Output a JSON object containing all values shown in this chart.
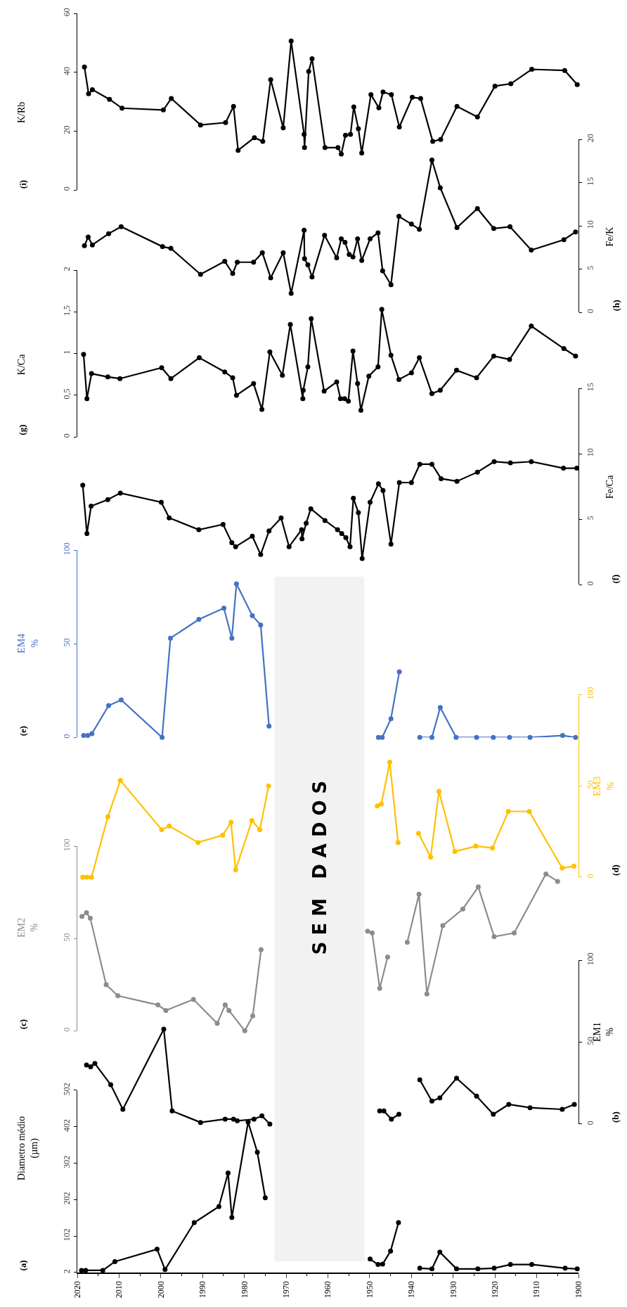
{
  "chart_data": [
    {
      "type": "line",
      "marker": "circle",
      "line_style": "solid",
      "ylabel": "Diametro médio\n(µm)",
      "annotations": [
        "(a)"
      ],
      "color": "#000000",
      "xlim": [
        2020,
        1900
      ],
      "xticks": [
        2020,
        2010,
        2000,
        1990,
        1980,
        1970,
        1960,
        1950,
        1940,
        1930,
        1920,
        1910,
        1900
      ],
      "ylim": [
        2,
        502
      ],
      "yticks": [
        2,
        102,
        202,
        302,
        402,
        502
      ],
      "bands": [
        {
          "axis": "x",
          "from": 1972.8,
          "to": 1951.3,
          "label": "SEM DADOS",
          "color": "#f2f2f2"
        }
      ],
      "x": [
        2019.0,
        2018.0,
        2013.9,
        2011.0,
        2000.9,
        1999.0,
        1992.0,
        1986.1,
        1983.9,
        1983.0,
        1979.1,
        1976.9,
        1975.0,
        1963,
        1949.9,
        1948.0,
        1946.9,
        1945.0,
        1943.1,
        1940.5,
        1938.0,
        1935.1,
        1933.2,
        1929.2,
        1924.1,
        1920.2,
        1916.3,
        1911.2,
        1903.2,
        1900.3
      ],
      "values": [
        8,
        8,
        8,
        32,
        66,
        10,
        139,
        183,
        275,
        153,
        415,
        332,
        207,
        null,
        39,
        24,
        25,
        61,
        139,
        null,
        14,
        12,
        58,
        12,
        12,
        14,
        24,
        24,
        14,
        12
      ]
    },
    {
      "type": "line",
      "marker": "circle",
      "line_style": "solid",
      "ylabel": "EM1\n%",
      "annotations": [
        "(b)"
      ],
      "color": "#000000",
      "tick_labels": "y",
      "xlim": [
        2020,
        1900
      ],
      "xticks": [
        2020,
        2010,
        2000,
        1990,
        1980,
        1970,
        1960,
        1950,
        1940,
        1930,
        1920,
        1910,
        1900
      ],
      "ylim": [
        0,
        100
      ],
      "yticks": [
        0,
        50,
        100
      ],
      "x": [
        2017.8,
        2016.8,
        2015.8,
        2012.0,
        2009.1,
        1999.3,
        1997.3,
        1990.5,
        1984.6,
        1982.6,
        1981.7,
        1977.7,
        1975.8,
        1973.9,
        1963,
        1947.6,
        1946.6,
        1944.8,
        1943.0,
        1940.5,
        1938.0,
        1935.1,
        1933.2,
        1929.2,
        1924.4,
        1920.4,
        1916.7,
        1911.6,
        1903.9,
        1901.0
      ],
      "values": [
        36,
        35,
        37,
        24,
        9,
        58,
        8,
        1,
        3,
        3,
        2,
        3,
        5,
        0,
        null,
        8,
        8,
        3,
        6,
        null,
        27,
        14,
        16,
        28,
        17,
        6,
        12,
        10,
        9,
        12
      ]
    },
    {
      "type": "line",
      "marker": "circle",
      "line_style": "solid",
      "ylabel": "EM2\n%",
      "annotations": [
        "(c)"
      ],
      "color": "#8c8c8c",
      "tick_labels": "y",
      "xlim": [
        2020,
        1900
      ],
      "xticks": [
        2020,
        2010,
        2000,
        1990,
        1980,
        1970,
        1960,
        1950,
        1940,
        1930,
        1920,
        1910,
        1900
      ],
      "ylim": [
        0,
        100
      ],
      "yticks": [
        0,
        50,
        100
      ],
      "x": [
        2018.9,
        2017.8,
        2016.9,
        2013.1,
        2010.3,
        2000.7,
        1998.8,
        1992.2,
        1986.5,
        1984.6,
        1983.7,
        1979.9,
        1978.0,
        1976.0,
        1963,
        1950.5,
        1949.4,
        1947.6,
        1945.7,
        1943.5,
        1941.0,
        1938.2,
        1936.3,
        1932.5,
        1927.7,
        1924.0,
        1920.2,
        1915.4,
        1907.8,
        1905.0
      ],
      "values": [
        62,
        64,
        61,
        25,
        19,
        14,
        11,
        17,
        4,
        14,
        11,
        0,
        8,
        44,
        null,
        54,
        53,
        23,
        40,
        null,
        48,
        74,
        20,
        57,
        66,
        78,
        51,
        53,
        85,
        81
      ]
    },
    {
      "type": "line",
      "marker": "circle",
      "line_style": "solid",
      "ylabel": "EM3\n%",
      "annotations": [
        "(d)"
      ],
      "color": "#ffc000",
      "tick_labels": "y",
      "xlim": [
        2020,
        1900
      ],
      "xticks": [
        2020,
        2010,
        2000,
        1990,
        1980,
        1970,
        1960,
        1950,
        1940,
        1930,
        1920,
        1910,
        1900
      ],
      "ylim": [
        0,
        100
      ],
      "yticks": [
        0,
        50,
        100
      ],
      "x": [
        2018.7,
        2017.7,
        2016.6,
        2012.7,
        2009.7,
        1999.8,
        1998.0,
        1991.1,
        1985.2,
        1983.2,
        1982.1,
        1978.2,
        1976.3,
        1974.2,
        1963,
        1948.2,
        1947.2,
        1945.2,
        1943.2,
        1940.7,
        1938.3,
        1935.4,
        1933.4,
        1929.6,
        1924.6,
        1920.6,
        1916.8,
        1911.8,
        1903.9,
        1901.1
      ],
      "values": [
        0,
        0,
        0,
        33,
        53,
        26,
        28,
        19,
        23,
        30,
        4,
        31,
        26,
        50,
        null,
        39,
        40,
        63,
        19,
        null,
        24,
        11,
        47,
        14,
        17,
        16,
        36,
        36,
        5,
        6
      ]
    },
    {
      "type": "line",
      "marker": "circle",
      "line_style": "solid",
      "ylabel": "EM4\n%",
      "annotations": [
        "(e)"
      ],
      "color": "#4472c4",
      "tick_labels": "y",
      "xlim": [
        2020,
        1900
      ],
      "xticks": [
        2020,
        2010,
        2000,
        1990,
        1980,
        1970,
        1960,
        1950,
        1940,
        1930,
        1920,
        1910,
        1900
      ],
      "ylim": [
        0,
        100
      ],
      "yticks": [
        0,
        50,
        100
      ],
      "x": [
        2018.5,
        2017.5,
        2016.5,
        2012.5,
        2009.5,
        1999.7,
        1997.7,
        1990.9,
        1984.9,
        1983.0,
        1981.9,
        1978.1,
        1976.1,
        1974.1,
        1963,
        1947.9,
        1947.0,
        1944.9,
        1942.9,
        1940.5,
        1938.0,
        1935.1,
        1933.1,
        1929.3,
        1924.4,
        1920.4,
        1916.5,
        1911.6,
        1903.8,
        1900.7
      ],
      "values": [
        1,
        1,
        2,
        17,
        20,
        0,
        53,
        63,
        69,
        53,
        82,
        65,
        60,
        6,
        null,
        0,
        0,
        10,
        35,
        null,
        0,
        0,
        16,
        0,
        0,
        0,
        0,
        0,
        1,
        0
      ]
    },
    {
      "type": "line",
      "marker": "circle",
      "line_style": "solid",
      "ylabel": "Fe/Ca",
      "annotations": [
        "(f)"
      ],
      "color": "#000000",
      "tick_labels": "y",
      "xlim": [
        2020,
        1900
      ],
      "xticks": [
        2020,
        2010,
        2000,
        1990,
        1980,
        1970,
        1960,
        1950,
        1940,
        1930,
        1920,
        1910,
        1900
      ],
      "ylim": [
        0,
        15
      ],
      "yticks": [
        0,
        5,
        10,
        15
      ],
      "x": [
        2018.7,
        2017.7,
        2016.7,
        2012.7,
        2009.7,
        1999.9,
        1998.0,
        1990.9,
        1985.1,
        1983.0,
        1982.1,
        1978.1,
        1976.1,
        1974.1,
        1971.2,
        1969.3,
        1966.3,
        1966.2,
        1965.2,
        1964.1,
        1960.7,
        1957.7,
        1956.7,
        1955.7,
        1954.7,
        1953.9,
        1952.7,
        1951.8,
        1949.9,
        1947.9,
        1946.8,
        1944.9,
        1942.9,
        1940.0,
        1938.0,
        1935.1,
        1932.9,
        1929.1,
        1924.2,
        1920.2,
        1916.3,
        1911.3,
        1903.6,
        1900.4
      ],
      "values": [
        7.6,
        3.9,
        6.0,
        6.5,
        7.0,
        6.3,
        5.1,
        4.2,
        4.6,
        3.2,
        2.9,
        3.7,
        2.3,
        4.1,
        5.1,
        2.9,
        4.2,
        3.5,
        4.7,
        5.8,
        4.9,
        4.2,
        3.9,
        3.6,
        2.9,
        6.6,
        5.5,
        2.0,
        6.3,
        7.7,
        7.2,
        3.1,
        7.8,
        7.8,
        9.2,
        9.2,
        8.1,
        7.9,
        8.6,
        9.4,
        9.3,
        9.4,
        8.9,
        8.9
      ]
    },
    {
      "type": "line",
      "marker": "circle",
      "line_style": "solid",
      "ylabel": "K/Ca",
      "annotations": [
        "(g)"
      ],
      "color": "#000000",
      "tick_labels": "y",
      "xlim": [
        2020,
        1900
      ],
      "xticks": [
        2020,
        2010,
        2000,
        1990,
        1980,
        1970,
        1960,
        1950,
        1940,
        1930,
        1920,
        1910,
        1900
      ],
      "ylim": [
        0,
        2
      ],
      "yticks": [
        0,
        {
          "value": 0.5,
          "label": "0,5"
        },
        1,
        {
          "value": 1.5,
          "label": "1,5"
        },
        2
      ],
      "x": [
        2018.5,
        2017.7,
        2016.6,
        2012.7,
        2009.8,
        1999.8,
        1997.6,
        1990.8,
        1984.7,
        1982.8,
        1981.9,
        1977.8,
        1975.8,
        1973.9,
        1970.9,
        1969.0,
        1966.0,
        1965.9,
        1964.8,
        1964.0,
        1960.9,
        1957.9,
        1957.0,
        1956.0,
        1955.1,
        1954.0,
        1952.9,
        1952.1,
        1950.2,
        1948.0,
        1947.1,
        1944.9,
        1943.0,
        1940.0,
        1938.1,
        1935.1,
        1933.1,
        1929.2,
        1924.4,
        1920.3,
        1916.5,
        1911.3,
        1903.5,
        1900.7
      ],
      "values": [
        0.99,
        0.46,
        0.76,
        0.72,
        0.7,
        0.83,
        0.7,
        0.95,
        0.78,
        0.71,
        0.5,
        0.64,
        0.33,
        1.02,
        0.74,
        1.35,
        0.46,
        0.56,
        0.84,
        1.42,
        0.55,
        0.66,
        0.46,
        0.46,
        0.43,
        1.03,
        0.64,
        0.32,
        0.73,
        0.84,
        1.53,
        0.98,
        0.69,
        0.77,
        0.95,
        0.52,
        0.56,
        0.8,
        0.71,
        0.97,
        0.93,
        1.33,
        1.06,
        0.97
      ]
    },
    {
      "type": "line",
      "marker": "circle",
      "line_style": "solid",
      "ylabel": "Fe/K",
      "annotations": [
        "(h)"
      ],
      "color": "#000000",
      "tick_labels": "y",
      "xlim": [
        2020,
        1900
      ],
      "xticks": [
        2020,
        2010,
        2000,
        1990,
        1980,
        1970,
        1960,
        1950,
        1940,
        1930,
        1920,
        1910,
        1900
      ],
      "ylim": [
        0,
        20
      ],
      "yticks": [
        0,
        5,
        10,
        15,
        20
      ],
      "x": [
        2018.3,
        2017.4,
        2016.4,
        2012.5,
        2009.5,
        1999.6,
        1997.6,
        1990.5,
        1984.7,
        1982.8,
        1981.7,
        1977.8,
        1975.7,
        1973.7,
        1970.7,
        1968.8,
        1965.7,
        1965.6,
        1964.8,
        1963.8,
        1960.8,
        1957.9,
        1956.8,
        1955.9,
        1954.9,
        1954.0,
        1952.9,
        1951.9,
        1949.9,
        1948.0,
        1946.9,
        1944.9,
        1943.0,
        1940.0,
        1938.1,
        1935.1,
        1933.1,
        1929.1,
        1924.2,
        1920.3,
        1916.4,
        1911.3,
        1903.5,
        1900.7
      ],
      "values": [
        7.7,
        8.7,
        7.8,
        9.1,
        9.9,
        7.6,
        7.4,
        4.4,
        5.9,
        4.5,
        5.8,
        5.8,
        6.9,
        4.0,
        6.9,
        2.2,
        9.5,
        6.2,
        5.5,
        4.1,
        8.9,
        6.3,
        8.5,
        8.1,
        6.7,
        6.4,
        8.5,
        6.0,
        8.5,
        9.2,
        4.8,
        3.2,
        11.1,
        10.2,
        9.6,
        17.6,
        14.4,
        9.8,
        12.0,
        9.7,
        9.9,
        7.2,
        8.4,
        9.3
      ]
    },
    {
      "type": "line",
      "marker": "circle",
      "line_style": "solid",
      "ylabel": "K/Rb",
      "annotations": [
        "(i)"
      ],
      "color": "#000000",
      "tick_labels": "y",
      "xlim": [
        2020,
        1900
      ],
      "xticks": [
        2020,
        2010,
        2000,
        1990,
        1980,
        1970,
        1960,
        1950,
        1940,
        1930,
        1920,
        1910,
        1900
      ],
      "ylim": [
        0,
        60
      ],
      "yticks": [
        0,
        20,
        40,
        60
      ],
      "x": [
        2018.3,
        2017.3,
        2016.4,
        2012.3,
        2009.3,
        1999.4,
        1997.5,
        1990.5,
        1984.5,
        1982.6,
        1981.5,
        1977.6,
        1975.6,
        1973.7,
        1970.7,
        1968.8,
        1965.7,
        1965.6,
        1964.6,
        1963.8,
        1960.7,
        1957.6,
        1956.8,
        1955.8,
        1954.6,
        1953.8,
        1952.7,
        1951.9,
        1949.7,
        1947.8,
        1946.8,
        1944.8,
        1942.9,
        1939.8,
        1937.8,
        1934.9,
        1933.0,
        1929.1,
        1924.2,
        1920.0,
        1916.2,
        1911.2,
        1903.3,
        1900.3
      ],
      "values": [
        41.8,
        32.7,
        34.1,
        30.8,
        27.8,
        27.2,
        31.1,
        22.1,
        22.9,
        28.4,
        13.5,
        17.8,
        16.5,
        37.5,
        21.1,
        50.6,
        18.9,
        14.4,
        40.3,
        44.6,
        14.4,
        14.4,
        12.2,
        18.6,
        18.9,
        28.2,
        20.8,
        12.6,
        32.4,
        27.9,
        33.3,
        32.4,
        21.4,
        31.5,
        31.1,
        16.5,
        17.2,
        28.4,
        24.8,
        35.3,
        36.1,
        41.0,
        40.6,
        35.8
      ]
    }
  ]
}
